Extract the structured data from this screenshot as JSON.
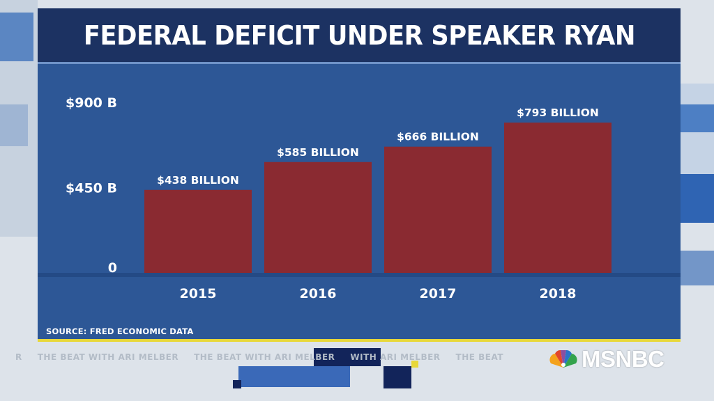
{
  "broadcast": {
    "ticker_items": [
      "R",
      "THE BEAT WITH ARI MELBER",
      "THE BEAT WITH ARI MELBER",
      "WITH ARI MELBER",
      "THE BEAT"
    ],
    "logo_text": "MSNBC",
    "colors": {
      "panel": "#2d5796",
      "title_bar": "#1c3262",
      "bar": "#8a2a31",
      "rule": "#e8d83a"
    }
  },
  "chart_data": {
    "type": "bar",
    "title": "FEDERAL DEFICIT UNDER SPEAKER RYAN",
    "categories": [
      "2015",
      "2016",
      "2017",
      "2018"
    ],
    "values": [
      438,
      585,
      666,
      793
    ],
    "data_labels": [
      "$438 BILLION",
      "$585 BILLION",
      "$666 BILLION",
      "$793 BILLION"
    ],
    "y_ticks": [
      0,
      450,
      900
    ],
    "y_tick_labels": [
      "0",
      "$450 B",
      "$900 B"
    ],
    "ylim": [
      0,
      900
    ],
    "xlabel": "",
    "ylabel": "",
    "source": "SOURCE: FRED ECONOMIC DATA",
    "grid": false,
    "legend": "none"
  }
}
